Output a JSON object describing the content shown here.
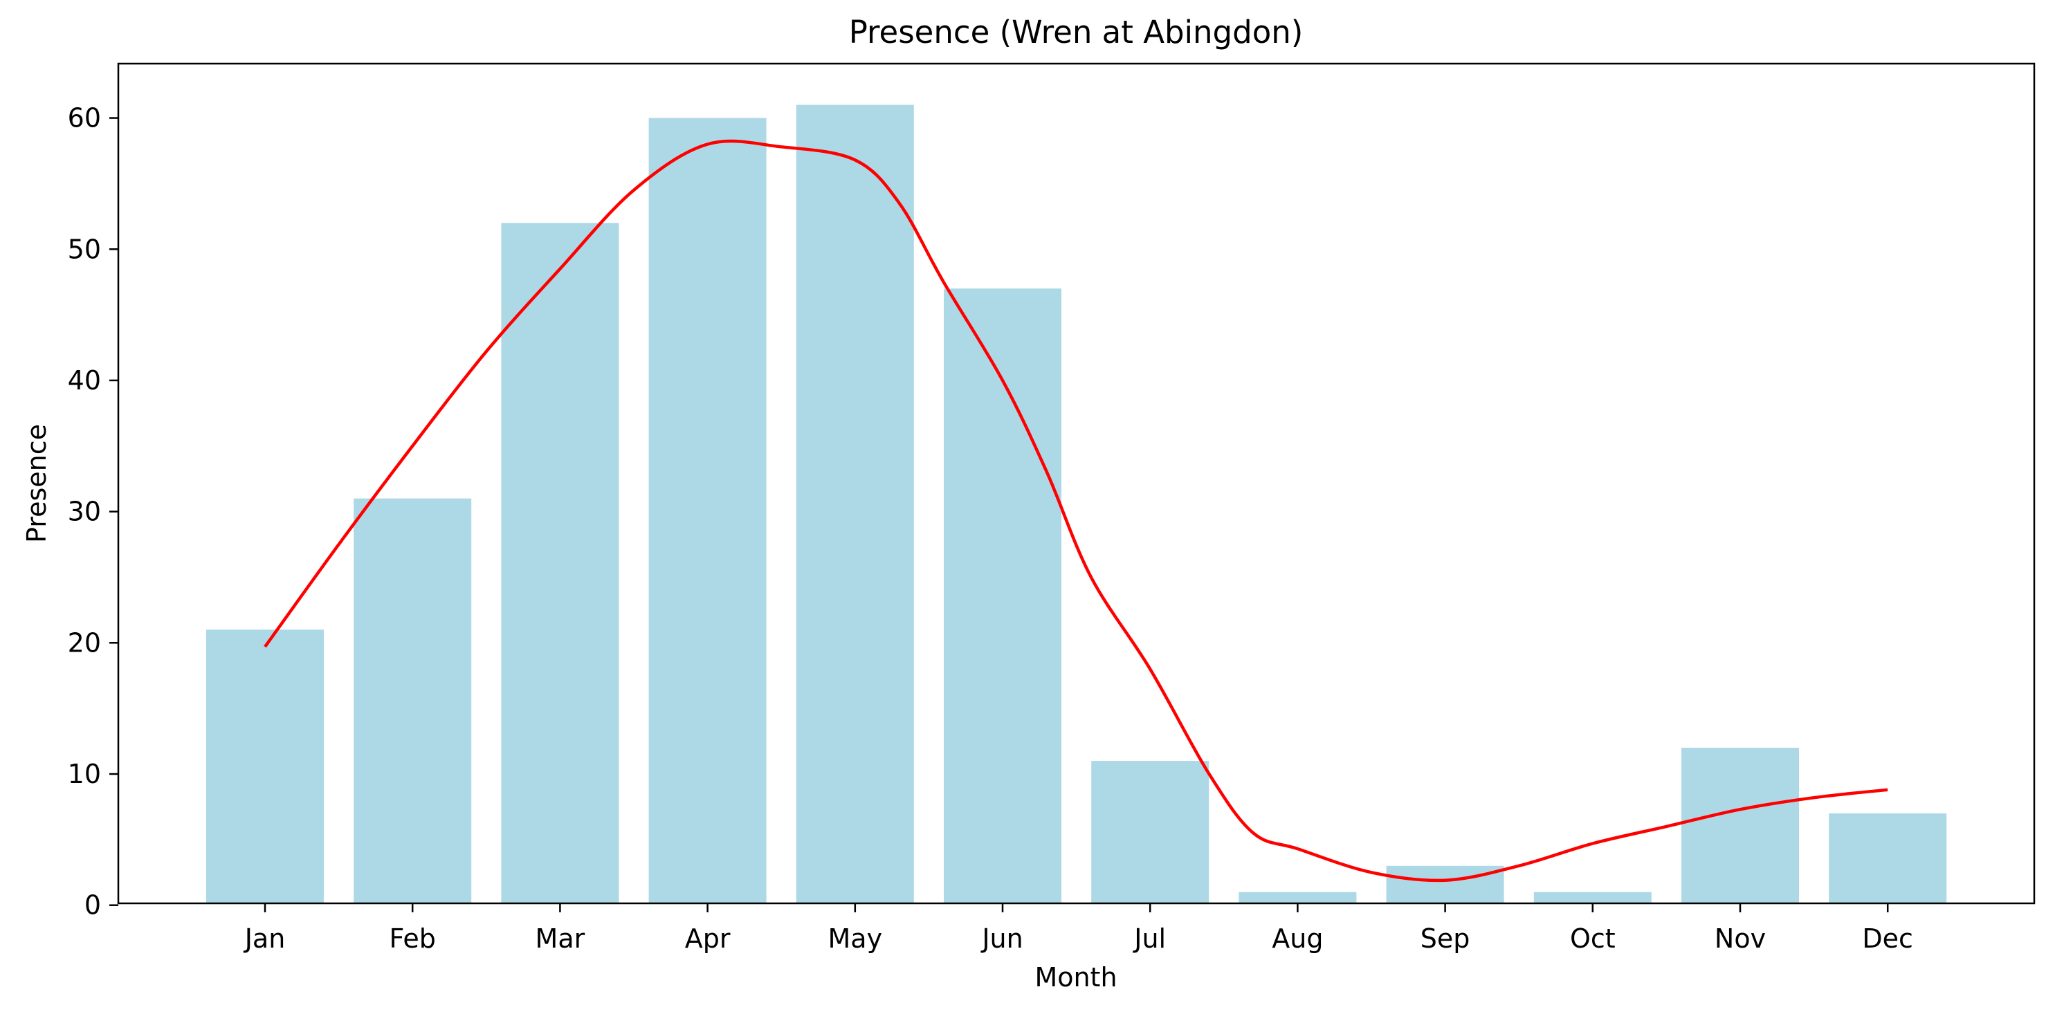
{
  "chart_data": {
    "type": "bar",
    "title": "Presence (Wren at Abingdon)",
    "xlabel": "Month",
    "ylabel": "Presence",
    "categories": [
      "Jan",
      "Feb",
      "Mar",
      "Apr",
      "May",
      "Jun",
      "Jul",
      "Aug",
      "Sep",
      "Oct",
      "Nov",
      "Dec"
    ],
    "values": [
      21,
      31,
      52,
      60,
      61,
      47,
      11,
      1,
      3,
      1,
      12,
      7
    ],
    "ylim": [
      0,
      64
    ],
    "yticks": [
      0,
      10,
      20,
      30,
      40,
      50,
      60
    ],
    "bar_color": "#add8e6",
    "trend": {
      "type": "line",
      "color": "#ff0000",
      "points": [
        {
          "x": 1,
          "y": 19.7
        },
        {
          "x": 1.5,
          "y": 27.5
        },
        {
          "x": 2,
          "y": 35.0
        },
        {
          "x": 2.5,
          "y": 42.2
        },
        {
          "x": 3,
          "y": 48.5
        },
        {
          "x": 3.5,
          "y": 54.5
        },
        {
          "x": 4,
          "y": 58.0
        },
        {
          "x": 4.5,
          "y": 57.8
        },
        {
          "x": 5,
          "y": 56.8
        },
        {
          "x": 5.3,
          "y": 53.5
        },
        {
          "x": 5.6,
          "y": 47.5
        },
        {
          "x": 6,
          "y": 40.0
        },
        {
          "x": 6.3,
          "y": 33.0
        },
        {
          "x": 6.6,
          "y": 25.0
        },
        {
          "x": 7,
          "y": 18.0
        },
        {
          "x": 7.4,
          "y": 10.0
        },
        {
          "x": 7.7,
          "y": 5.5
        },
        {
          "x": 8,
          "y": 4.3
        },
        {
          "x": 8.5,
          "y": 2.5
        },
        {
          "x": 9,
          "y": 1.9
        },
        {
          "x": 9.5,
          "y": 3.0
        },
        {
          "x": 10,
          "y": 4.7
        },
        {
          "x": 10.5,
          "y": 6.0
        },
        {
          "x": 11,
          "y": 7.3
        },
        {
          "x": 11.5,
          "y": 8.2
        },
        {
          "x": 12,
          "y": 8.8
        }
      ]
    }
  }
}
